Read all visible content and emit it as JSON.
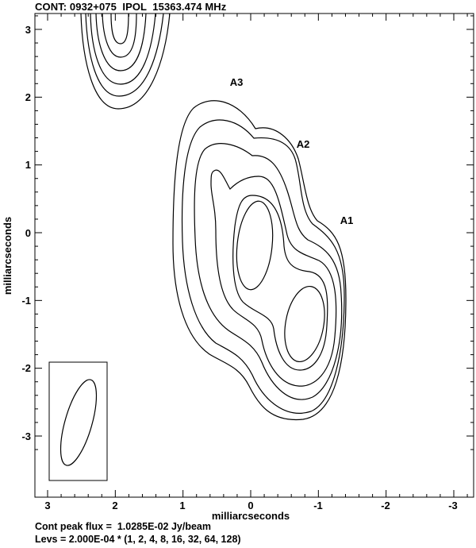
{
  "header": {
    "title": "CONT: 0932+075  IPOL  15363.474 MHz"
  },
  "axes": {
    "xlabel": "milliarcseconds",
    "ylabel": "milliarcseconds",
    "xticks": [
      "3",
      "2",
      "1",
      "0",
      "-1",
      "-2",
      "-3"
    ],
    "yticks": [
      "3",
      "2",
      "1",
      "0",
      "-1",
      "-2",
      "-3"
    ]
  },
  "components": [
    {
      "label": "A3"
    },
    {
      "label": "A2"
    },
    {
      "label": "A1"
    }
  ],
  "footer": {
    "peak_flux": "Cont peak flux =  1.0285E-02 Jy/beam",
    "levels": "Levs = 2.000E-04 * (1, 2, 4, 8, 16, 32, 64, 128)"
  }
}
